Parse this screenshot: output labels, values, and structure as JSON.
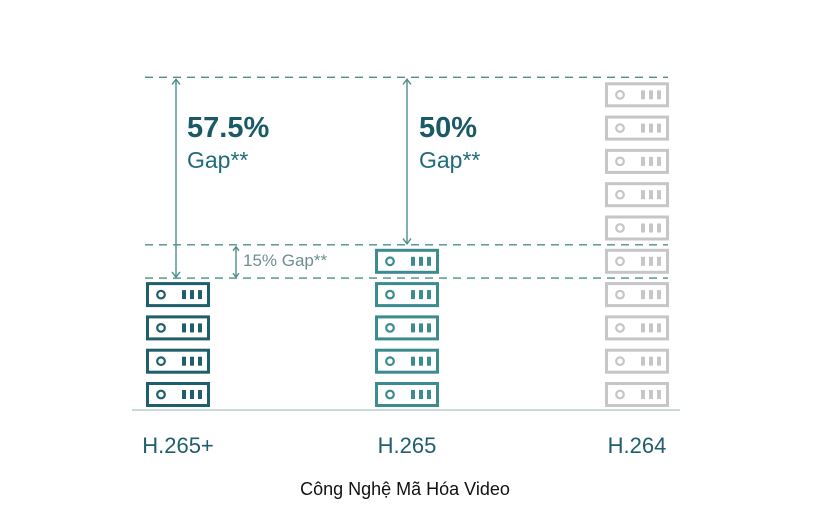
{
  "colors": {
    "dark_teal": "#1e5f6b",
    "mid_teal": "#3b8b8f",
    "light_gray": "#c6c6c6",
    "guide": "#4e8e8b",
    "baseline": "#b9cdcf"
  },
  "icon": "server-rack-icon",
  "chart_data": {
    "type": "bar",
    "categories": [
      "H.265+",
      "H.265",
      "H.264"
    ],
    "values": [
      4,
      5,
      10
    ],
    "unit_icon": "server-rack-icon",
    "xlabel": "Công Nghệ Mã Hóa Video",
    "annotations": [
      {
        "text_pct": "57.5%",
        "text_word": "Gap**",
        "from": "H.265+",
        "to": "H.264"
      },
      {
        "text_pct": "50%",
        "text_word": "Gap**",
        "from": "H.265",
        "to": "H.264"
      },
      {
        "text": "15% Gap**",
        "from": "H.265+",
        "to": "H.265"
      }
    ],
    "grid": false
  }
}
